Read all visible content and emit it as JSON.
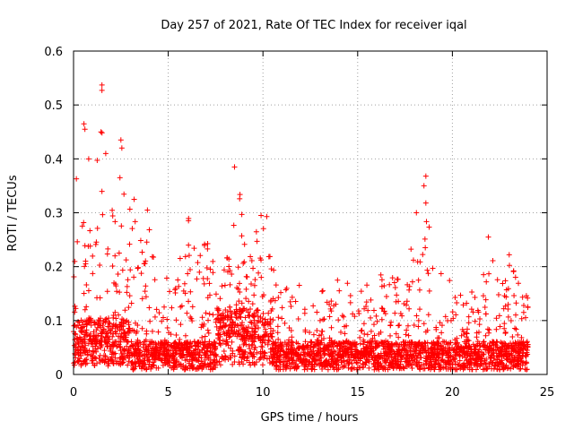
{
  "chart_data": {
    "type": "scatter",
    "title": "Day 257 of 2021, Rate Of TEC Index for receiver iqal",
    "xlabel": "GPS time / hours",
    "ylabel": "ROTI / TECUs",
    "xlim": [
      0,
      25
    ],
    "ylim": [
      0,
      0.6
    ],
    "xticks": [
      "0",
      "5",
      "10",
      "15",
      "20",
      "25"
    ],
    "yticks": [
      "0",
      "0.1",
      "0.2",
      "0.3",
      "0.4",
      "0.5",
      "0.6"
    ],
    "grid": true,
    "marker": "plus",
    "color": "#ff0000",
    "envelope": {
      "x": [
        0,
        0.5,
        1,
        1.5,
        2,
        2.5,
        3,
        3.5,
        4,
        4.5,
        5,
        5.5,
        6,
        6.5,
        7,
        7.5,
        8,
        8.5,
        9,
        9.5,
        10,
        10.5,
        11,
        11.5,
        12,
        12.5,
        13,
        13.5,
        14,
        14.5,
        15,
        15.5,
        16,
        16.5,
        17,
        17.5,
        18,
        18.5,
        19,
        19.5,
        20,
        20.5,
        21,
        21.5,
        22,
        22.5,
        23,
        23.5,
        24
      ],
      "y": [
        0.36,
        0.29,
        0.4,
        0.45,
        0.3,
        0.43,
        0.32,
        0.26,
        0.3,
        0.2,
        0.18,
        0.2,
        0.3,
        0.23,
        0.25,
        0.25,
        0.22,
        0.38,
        0.3,
        0.28,
        0.29,
        0.21,
        0.19,
        0.15,
        0.17,
        0.16,
        0.16,
        0.15,
        0.19,
        0.17,
        0.16,
        0.17,
        0.17,
        0.21,
        0.18,
        0.17,
        0.27,
        0.37,
        0.2,
        0.19,
        0.17,
        0.15,
        0.16,
        0.17,
        0.25,
        0.16,
        0.22,
        0.18,
        0.18
      ]
    },
    "peaks": [
      {
        "x": 1.5,
        "y": 0.537
      },
      {
        "x": 1.5,
        "y": 0.527
      },
      {
        "x": 0.55,
        "y": 0.465
      },
      {
        "x": 0.6,
        "y": 0.455
      },
      {
        "x": 1.45,
        "y": 0.45
      },
      {
        "x": 2.5,
        "y": 0.435
      },
      {
        "x": 2.55,
        "y": 0.42
      },
      {
        "x": 1.7,
        "y": 0.41
      },
      {
        "x": 0.8,
        "y": 0.4
      },
      {
        "x": 8.5,
        "y": 0.385
      },
      {
        "x": 18.6,
        "y": 0.368
      },
      {
        "x": 18.5,
        "y": 0.35
      },
      {
        "x": 2.45,
        "y": 0.365
      },
      {
        "x": 0.15,
        "y": 0.363
      },
      {
        "x": 3.2,
        "y": 0.325
      },
      {
        "x": 18.6,
        "y": 0.318
      },
      {
        "x": 18.1,
        "y": 0.3
      },
      {
        "x": 9.9,
        "y": 0.295
      },
      {
        "x": 10.2,
        "y": 0.293
      },
      {
        "x": 3.9,
        "y": 0.305
      },
      {
        "x": 21.9,
        "y": 0.255
      },
      {
        "x": 23.0,
        "y": 0.222
      }
    ]
  }
}
